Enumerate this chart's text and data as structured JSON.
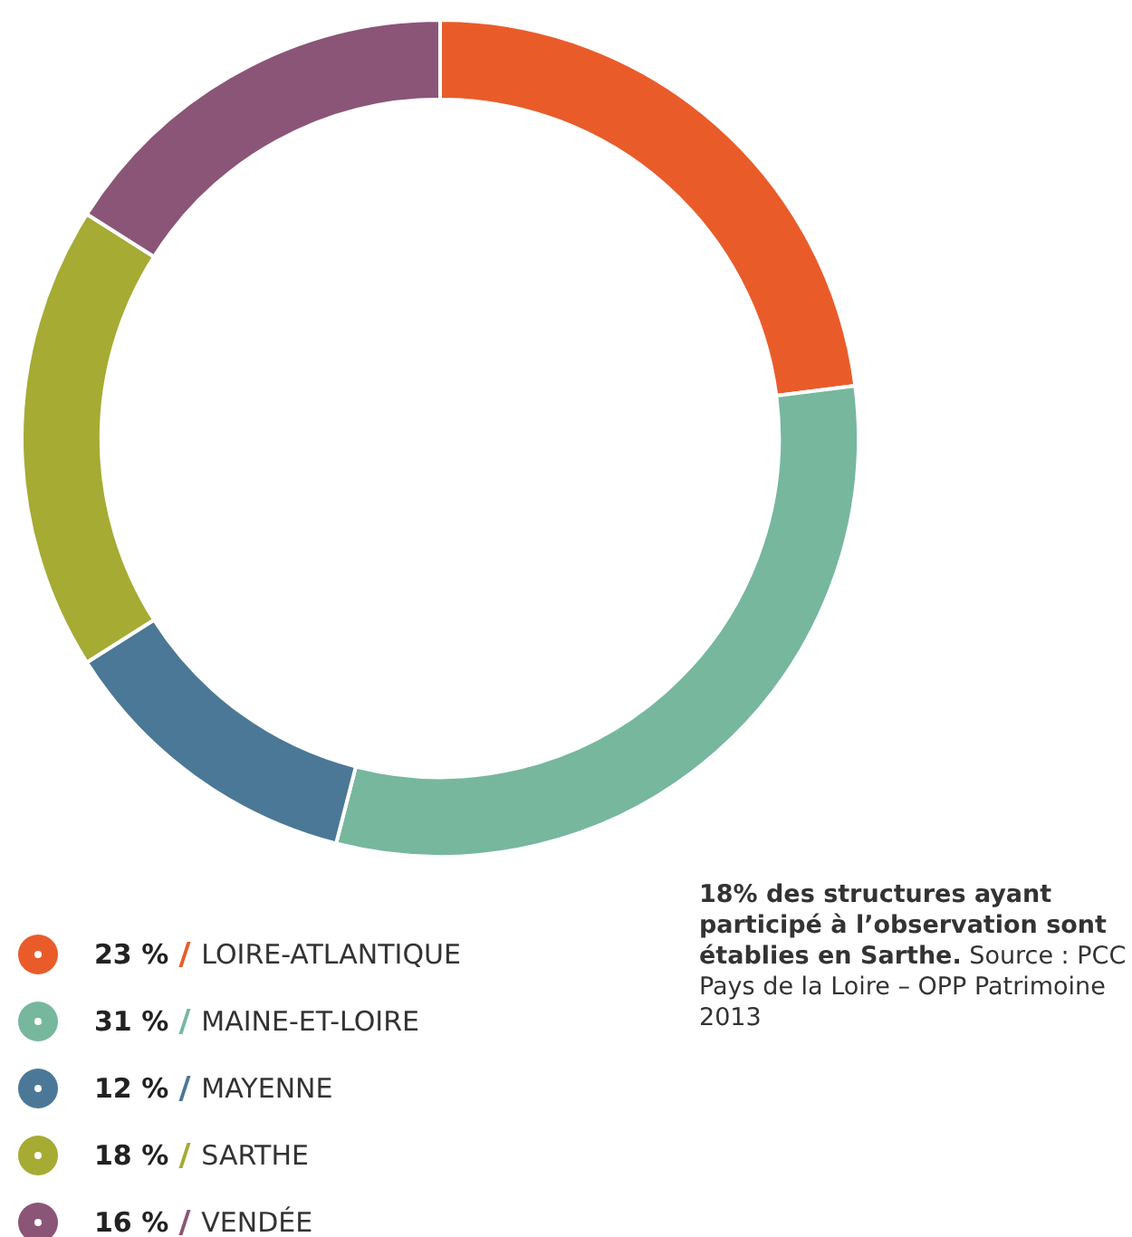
{
  "chart_data": {
    "type": "donut",
    "categories": [
      "LOIRE-ATLANTIQUE",
      "MAINE-ET-LOIRE",
      "MAYENNE",
      "SARTHE",
      "VENDÉE"
    ],
    "values": [
      23,
      31,
      12,
      18,
      16
    ],
    "colors": [
      "#e95c2a",
      "#76b79e",
      "#4b7896",
      "#a5ab33",
      "#8b5577"
    ],
    "value_labels": [
      "23 %",
      "31 %",
      "12 %",
      "18 %",
      "16 %"
    ],
    "legend": "bottom left",
    "annotations": [
      "18% des structures ayant participé à l’observation sont établies en Sarthe.",
      "Source : PCC Pays de la Loire – OPP Patrimoine 2013"
    ]
  }
}
